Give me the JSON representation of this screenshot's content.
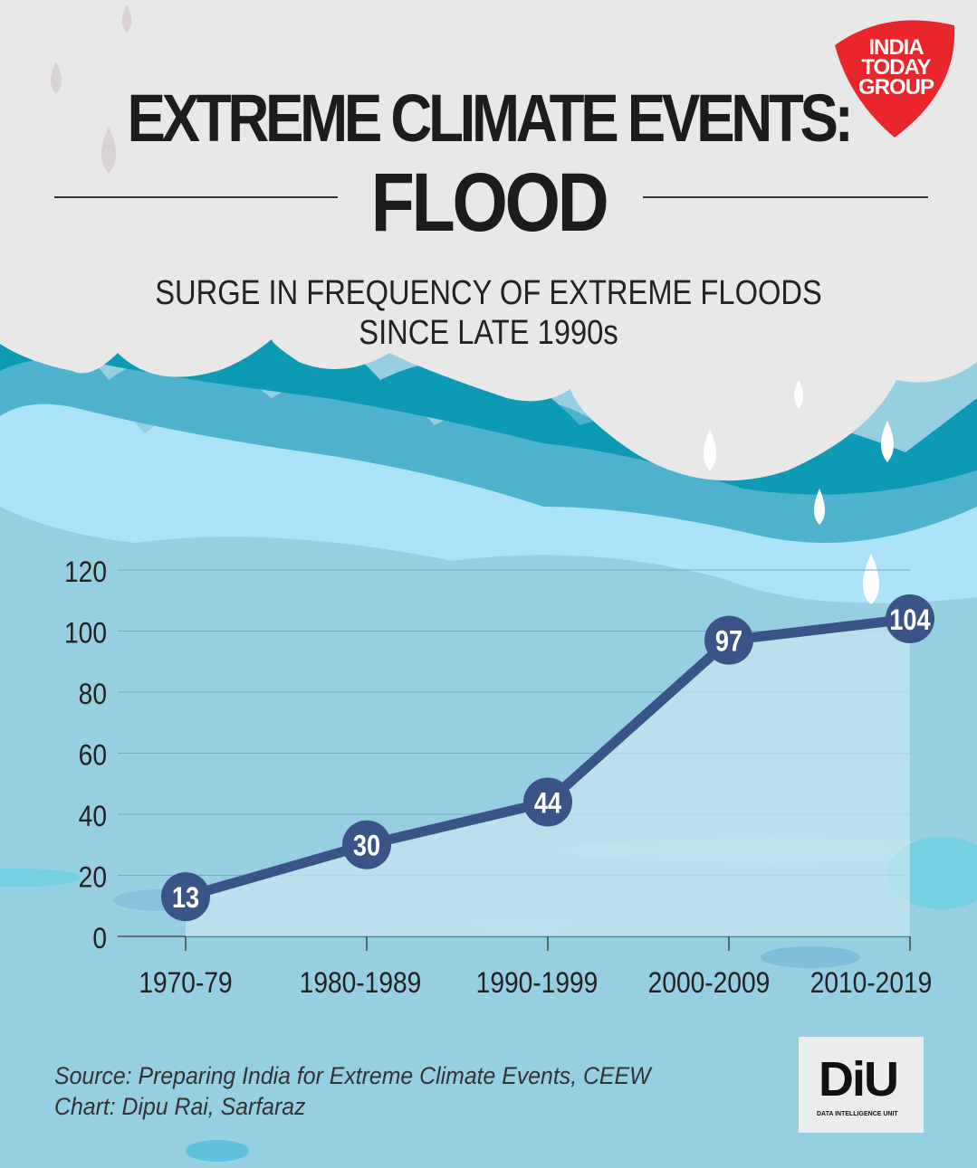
{
  "header": {
    "title": "EXTREME CLIMATE EVENTS:",
    "subtitle_main": "FLOOD",
    "description_line1": "SURGE IN FREQUENCY OF EXTREME FLOODS",
    "description_line2": "SINCE LATE 1990s"
  },
  "logos": {
    "brand": "INDIA TODAY GROUP",
    "brand_lines": [
      "INDIA",
      "TODAY",
      "GROUP"
    ],
    "brand_color": "#e8262b",
    "diu": "DiU",
    "diu_subtitle": "DATA INTELLIGENCE UNIT"
  },
  "footer": {
    "source": "Source: Preparing India for Extreme Climate Events, CEEW",
    "credit": "Chart: Dipu Rai, Sarfaraz"
  },
  "colors": {
    "cloud": "#e8e8e8",
    "wave_dark": "#0d9ab5",
    "wave_mid": "#4fb2cc",
    "wave_light": "#ade3f8",
    "water": "#96cfe0",
    "line": "#3b5488",
    "area_fill": "#c4e6ef"
  },
  "chart_data": {
    "type": "line",
    "categories": [
      "1970-79",
      "1980-1989",
      "1990-1999",
      "2000-2009",
      "2010-2019"
    ],
    "values": [
      13,
      30,
      44,
      97,
      104
    ],
    "data_labels": [
      "13",
      "30",
      "44",
      "97",
      "104"
    ],
    "ylim": [
      0,
      120
    ],
    "yticks": [
      0,
      20,
      40,
      60,
      80,
      100,
      120
    ],
    "grid": true,
    "xlabel": "",
    "ylabel": ""
  }
}
